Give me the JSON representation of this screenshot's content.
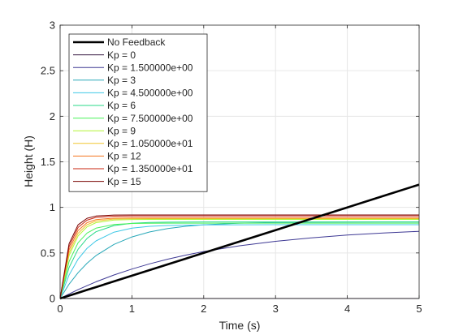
{
  "chart_data": {
    "type": "line",
    "title": "",
    "xlabel": "Time (s)",
    "ylabel": "Height (H)",
    "xlim": [
      0,
      5
    ],
    "ylim": [
      0,
      3
    ],
    "x_ticks": [
      "0",
      "1",
      "2",
      "3",
      "4",
      "5"
    ],
    "y_ticks": [
      "0",
      "0.5",
      "1",
      "1.5",
      "2",
      "2.5",
      "3"
    ],
    "grid": true,
    "legend_position": "top-left",
    "x": [
      0,
      0.125,
      0.25,
      0.375,
      0.5,
      0.75,
      1,
      1.25,
      1.5,
      1.75,
      2,
      2.5,
      3,
      3.5,
      4,
      4.5,
      5
    ],
    "series": [
      {
        "name": "No Feedback",
        "color": "#000000",
        "emphasis": true,
        "values": [
          0,
          0.031,
          0.0625,
          0.094,
          0.125,
          0.1875,
          0.25,
          0.3125,
          0.375,
          0.4375,
          0.5,
          0.625,
          0.75,
          0.875,
          1.0,
          1.125,
          1.25
        ]
      },
      {
        "name": "Kp = 0",
        "color": "#30123b",
        "values": [
          0,
          0,
          0,
          0,
          0,
          0,
          0,
          0,
          0,
          0,
          0,
          0,
          0,
          0,
          0,
          0,
          0
        ]
      },
      {
        "name": "Kp = 1.500000e+00",
        "color": "#3e3994",
        "values": [
          0,
          0.05,
          0.097,
          0.141,
          0.183,
          0.258,
          0.323,
          0.381,
          0.432,
          0.476,
          0.515,
          0.579,
          0.628,
          0.666,
          0.696,
          0.719,
          0.737
        ]
      },
      {
        "name": "Kp = 3",
        "color": "#28a8b8",
        "values": [
          0,
          0.157,
          0.283,
          0.387,
          0.471,
          0.594,
          0.676,
          0.731,
          0.768,
          0.792,
          0.809,
          0.827,
          0.835,
          0.838,
          0.839,
          0.84,
          0.84
        ]
      },
      {
        "name": "Kp = 4.500000e+00",
        "color": "#3ec8e6",
        "values": [
          0,
          0.257,
          0.432,
          0.551,
          0.632,
          0.728,
          0.772,
          0.792,
          0.801,
          0.805,
          0.807,
          0.809,
          0.81,
          0.81,
          0.81,
          0.81,
          0.81
        ]
      },
      {
        "name": "Kp = 6",
        "color": "#2ad98a",
        "values": [
          0,
          0.339,
          0.54,
          0.66,
          0.733,
          0.8,
          0.825,
          0.834,
          0.838,
          0.839,
          0.84,
          0.84,
          0.84,
          0.84,
          0.84,
          0.84,
          0.84
        ]
      },
      {
        "name": "Kp = 7.500000e+00",
        "color": "#4af25a",
        "values": [
          0,
          0.405,
          0.612,
          0.718,
          0.772,
          0.813,
          0.823,
          0.826,
          0.827,
          0.827,
          0.827,
          0.827,
          0.827,
          0.827,
          0.827,
          0.827,
          0.827
        ]
      },
      {
        "name": "Kp = 9",
        "color": "#b4f536",
        "values": [
          0,
          0.47,
          0.686,
          0.786,
          0.832,
          0.861,
          0.867,
          0.868,
          0.868,
          0.868,
          0.868,
          0.868,
          0.868,
          0.868,
          0.868,
          0.868,
          0.868
        ]
      },
      {
        "name": "Kp = 1.050000e+01",
        "color": "#f0c531",
        "values": [
          0,
          0.5,
          0.716,
          0.81,
          0.85,
          0.872,
          0.876,
          0.877,
          0.877,
          0.877,
          0.877,
          0.877,
          0.877,
          0.877,
          0.877,
          0.877,
          0.877
        ]
      },
      {
        "name": "Kp = 12",
        "color": "#f5741f",
        "values": [
          0,
          0.533,
          0.747,
          0.832,
          0.866,
          0.882,
          0.885,
          0.885,
          0.885,
          0.885,
          0.885,
          0.885,
          0.885,
          0.885,
          0.885,
          0.885,
          0.885
        ]
      },
      {
        "name": "Kp = 1.350000e+01",
        "color": "#c9250f",
        "values": [
          0,
          0.568,
          0.78,
          0.86,
          0.89,
          0.904,
          0.906,
          0.906,
          0.906,
          0.906,
          0.906,
          0.906,
          0.906,
          0.906,
          0.906,
          0.906,
          0.906
        ]
      },
      {
        "name": "Kp = 15",
        "color": "#7a0403",
        "values": [
          0,
          0.6,
          0.808,
          0.88,
          0.905,
          0.916,
          0.917,
          0.917,
          0.917,
          0.917,
          0.917,
          0.917,
          0.917,
          0.917,
          0.917,
          0.917,
          0.917
        ]
      }
    ]
  }
}
